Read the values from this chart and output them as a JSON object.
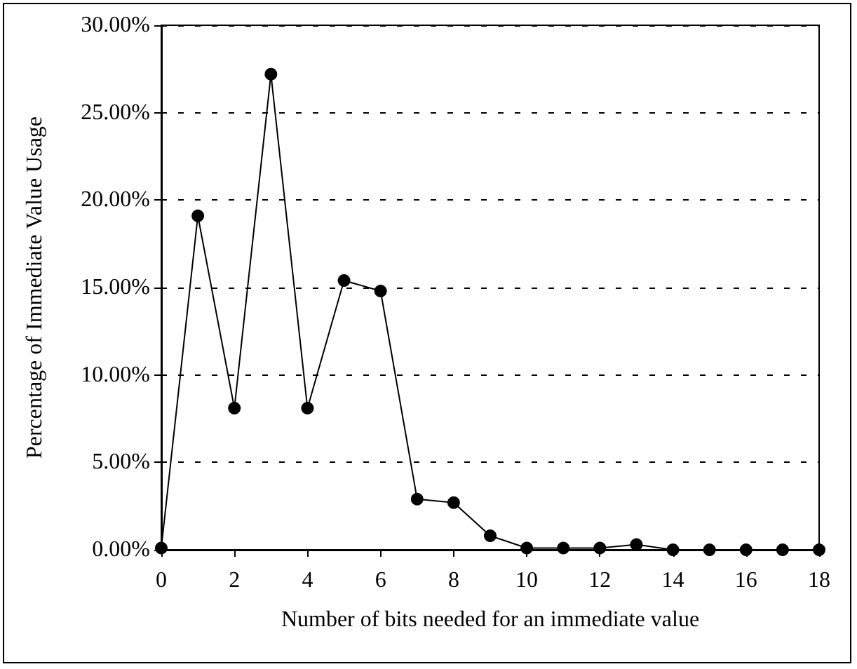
{
  "chart_data": {
    "type": "line",
    "xlabel": "Number of bits needed for an immediate value",
    "ylabel": "Percentage of Immediate Value Usage",
    "x": [
      0,
      1,
      2,
      3,
      4,
      5,
      6,
      7,
      8,
      9,
      10,
      11,
      12,
      13,
      14,
      15,
      16,
      17,
      18
    ],
    "series": [
      {
        "color": "#000000",
        "values": [
          0.1,
          19.1,
          8.1,
          27.2,
          8.1,
          15.4,
          14.8,
          2.9,
          2.7,
          0.8,
          0.1,
          0.1,
          0.1,
          0.3,
          0,
          0,
          0,
          0,
          0
        ]
      }
    ],
    "xlim": [
      0,
      18
    ],
    "xticks": [
      0,
      2,
      4,
      6,
      8,
      10,
      12,
      14,
      16,
      18
    ],
    "ylim": [
      0,
      30
    ],
    "yticks": [
      {
        "value": 0,
        "label": "0.00%"
      },
      {
        "value": 5,
        "label": "5.00%"
      },
      {
        "value": 10,
        "label": "10.00%"
      },
      {
        "value": 15,
        "label": "15.00%"
      },
      {
        "value": 20,
        "label": "20.00%"
      },
      {
        "value": 25,
        "label": "25.00%"
      },
      {
        "value": 30,
        "label": "30.00%"
      }
    ],
    "grid": "y",
    "marker": "circle",
    "line_style": "solid"
  }
}
